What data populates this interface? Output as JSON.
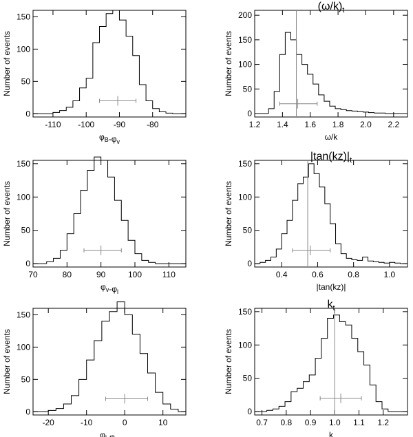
{
  "chart_data": [
    {
      "type": "histogram",
      "title": "",
      "xlabel": "φB-φv",
      "ylabel": "Number of events",
      "xlim": [
        -116,
        -70
      ],
      "ylim": [
        -5,
        160
      ],
      "xticks": [
        -110,
        -100,
        -90,
        -80
      ],
      "yticks": [
        0,
        50,
        100,
        150
      ],
      "bin_edges": [
        -110,
        -108,
        -106,
        -104,
        -102,
        -100,
        -98,
        -96,
        -94,
        -92,
        -90,
        -88,
        -86,
        -84,
        -82,
        -80,
        -78,
        -76,
        -74
      ],
      "counts": [
        2,
        5,
        10,
        20,
        40,
        55,
        110,
        135,
        155,
        160,
        145,
        120,
        90,
        45,
        20,
        8,
        3,
        1
      ],
      "errorbar": {
        "center": -90.5,
        "low": -96,
        "high": -85
      },
      "vline": null
    },
    {
      "type": "histogram",
      "title": "(ω/k)t",
      "xlabel": "ω/k",
      "ylabel": "Number of events",
      "xlim": [
        1.2,
        2.3
      ],
      "ylim": [
        -7,
        210
      ],
      "xticks": [
        1.2,
        1.4,
        1.6,
        1.8,
        2.0,
        2.2
      ],
      "yticks": [
        0,
        50,
        100,
        150,
        200
      ],
      "bin_edges": [
        1.3,
        1.34,
        1.38,
        1.42,
        1.46,
        1.5,
        1.54,
        1.58,
        1.62,
        1.66,
        1.7,
        1.74,
        1.78,
        1.82,
        1.86,
        1.9,
        1.94,
        1.98,
        2.02,
        2.06,
        2.1,
        2.14
      ],
      "counts": [
        10,
        45,
        120,
        165,
        150,
        120,
        100,
        80,
        60,
        38,
        25,
        15,
        10,
        8,
        6,
        5,
        4,
        3,
        2,
        1,
        1
      ],
      "errorbar": {
        "center": 1.51,
        "low": 1.38,
        "high": 1.65
      },
      "vline": 1.5
    },
    {
      "type": "histogram",
      "title": "",
      "xlabel": "φv-φl",
      "ylabel": "Number of events",
      "xlim": [
        70,
        115
      ],
      "ylim": [
        -5,
        155
      ],
      "xticks": [
        70,
        80,
        90,
        100,
        110
      ],
      "yticks": [
        0,
        50,
        100,
        150
      ],
      "bin_edges": [
        74,
        76,
        78,
        80,
        82,
        84,
        86,
        88,
        90,
        92,
        94,
        96,
        98,
        100,
        102,
        104,
        106
      ],
      "counts": [
        3,
        8,
        20,
        45,
        75,
        110,
        140,
        160,
        155,
        130,
        95,
        65,
        35,
        15,
        5,
        2
      ],
      "errorbar": {
        "center": 90,
        "low": 85,
        "high": 96
      },
      "vline": null
    },
    {
      "type": "histogram",
      "title": "|tan(kz)|t",
      "xlabel": "|tan(kz)|",
      "ylabel": "Number of events",
      "xlim": [
        0.25,
        1.1
      ],
      "ylim": [
        -5,
        155
      ],
      "xticks": [
        0.4,
        0.6,
        0.8,
        1.0
      ],
      "yticks": [
        0,
        50,
        100,
        150
      ],
      "bin_edges": [
        0.28,
        0.31,
        0.34,
        0.37,
        0.4,
        0.43,
        0.46,
        0.49,
        0.52,
        0.55,
        0.58,
        0.61,
        0.64,
        0.67,
        0.7,
        0.73,
        0.76,
        0.79,
        0.82,
        0.85,
        0.88,
        0.91,
        0.94,
        0.97,
        1.0,
        1.03,
        1.06
      ],
      "counts": [
        2,
        5,
        10,
        22,
        45,
        65,
        95,
        120,
        130,
        150,
        135,
        115,
        90,
        60,
        30,
        15,
        8,
        6,
        5,
        10,
        4,
        3,
        2,
        1,
        2,
        1
      ],
      "errorbar": {
        "center": 0.56,
        "low": 0.46,
        "high": 0.67
      },
      "vline": 0.545
    },
    {
      "type": "histogram",
      "title": "",
      "xlabel": "φl-φB",
      "ylabel": "Number of events",
      "xlim": [
        -24,
        16
      ],
      "ylim": [
        -5,
        160
      ],
      "xticks": [
        -20,
        -10,
        0,
        10
      ],
      "yticks": [
        0,
        50,
        100,
        150
      ],
      "bin_edges": [
        -20,
        -18,
        -16,
        -14,
        -12,
        -10,
        -8,
        -6,
        -4,
        -2,
        0,
        2,
        4,
        6,
        8,
        10,
        12,
        14
      ],
      "counts": [
        2,
        5,
        12,
        25,
        50,
        80,
        110,
        140,
        155,
        170,
        150,
        120,
        90,
        60,
        30,
        12,
        4
      ],
      "errorbar": {
        "center": 0,
        "low": -5,
        "high": 6
      },
      "vline": null
    },
    {
      "type": "histogram",
      "title": "kt",
      "xlabel": "k",
      "ylabel": "Number of events",
      "xlim": [
        0.67,
        1.3
      ],
      "ylim": [
        -5,
        155
      ],
      "xticks": [
        0.7,
        0.8,
        0.9,
        1.0,
        1.1,
        1.2
      ],
      "yticks": [
        0,
        50,
        100,
        150
      ],
      "bin_edges": [
        0.72,
        0.745,
        0.77,
        0.795,
        0.82,
        0.845,
        0.87,
        0.895,
        0.92,
        0.945,
        0.97,
        0.995,
        1.02,
        1.045,
        1.07,
        1.095,
        1.12,
        1.145,
        1.17,
        1.195,
        1.22
      ],
      "counts": [
        2,
        4,
        8,
        15,
        30,
        35,
        45,
        55,
        80,
        110,
        140,
        145,
        135,
        130,
        110,
        90,
        70,
        40,
        15,
        4
      ],
      "errorbar": {
        "center": 1.025,
        "low": 0.94,
        "high": 1.11
      },
      "vline": 1.0
    }
  ]
}
